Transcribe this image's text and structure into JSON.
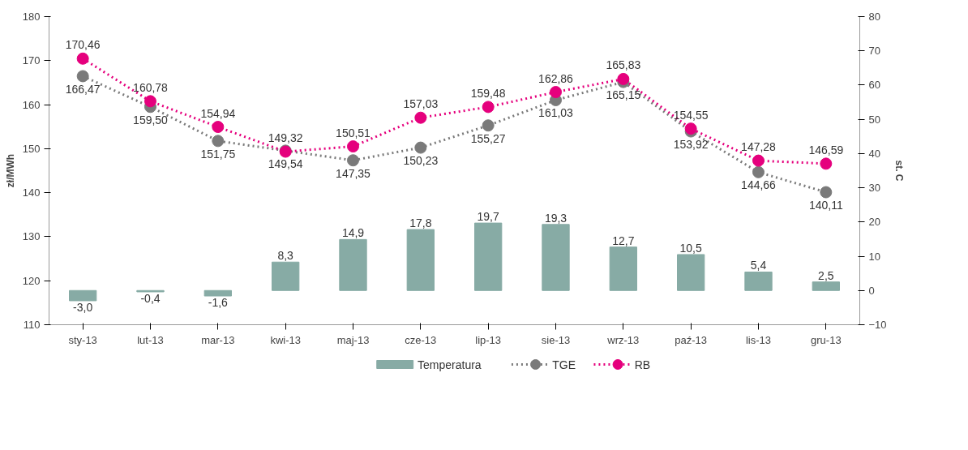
{
  "chart_data": {
    "type": "line",
    "ylabel": "zł/MWh",
    "y2label": "st. C",
    "categories": [
      "sty-13",
      "lut-13",
      "mar-13",
      "kwi-13",
      "maj-13",
      "cze-13",
      "lip-13",
      "sie-13",
      "wrz-13",
      "paź-13",
      "lis-13",
      "gru-13"
    ],
    "ylim": [
      110,
      180
    ],
    "yticks": [
      110,
      120,
      130,
      140,
      150,
      160,
      170,
      180
    ],
    "y2lim": [
      -10,
      80
    ],
    "y2ticks": [
      -10,
      0,
      10,
      20,
      30,
      40,
      50,
      60,
      70,
      80
    ],
    "grid": false,
    "legend": "bottom",
    "marker": "circle",
    "line_style": "dotted",
    "series": [
      {
        "name": "Temperatura",
        "type": "bar",
        "axis": "y2",
        "color": "#87aba5",
        "values": [
          -3.0,
          -0.4,
          -1.6,
          8.3,
          14.9,
          17.8,
          19.7,
          19.3,
          12.7,
          10.5,
          5.4,
          2.5
        ],
        "value_labels": [
          "-3,0",
          "-0,4",
          "-1,6",
          "8,3",
          "14,9",
          "17,8",
          "19,7",
          "19,3",
          "12,7",
          "10,5",
          "5,4",
          "2,5"
        ]
      },
      {
        "name": "TGE",
        "color": "#7a7a7a",
        "values": [
          166.47,
          159.5,
          151.75,
          149.54,
          147.35,
          150.23,
          155.27,
          161.03,
          165.15,
          153.92,
          144.66,
          140.11
        ],
        "value_labels": [
          "166,47",
          "159,50",
          "151,75",
          "149,54",
          "147,35",
          "150,23",
          "155,27",
          "161,03",
          "165,15",
          "153,92",
          "144,66",
          "140,11"
        ]
      },
      {
        "name": "RB",
        "color": "#e5007d",
        "values": [
          170.46,
          160.78,
          154.94,
          149.32,
          150.51,
          157.03,
          159.48,
          162.86,
          165.83,
          154.55,
          147.28,
          146.59
        ],
        "value_labels": [
          "170,46",
          "160,78",
          "154,94",
          "149,32",
          "150,51",
          "157,03",
          "159,48",
          "162,86",
          "165,83",
          "154,55",
          "147,28",
          "146,59"
        ]
      }
    ]
  }
}
